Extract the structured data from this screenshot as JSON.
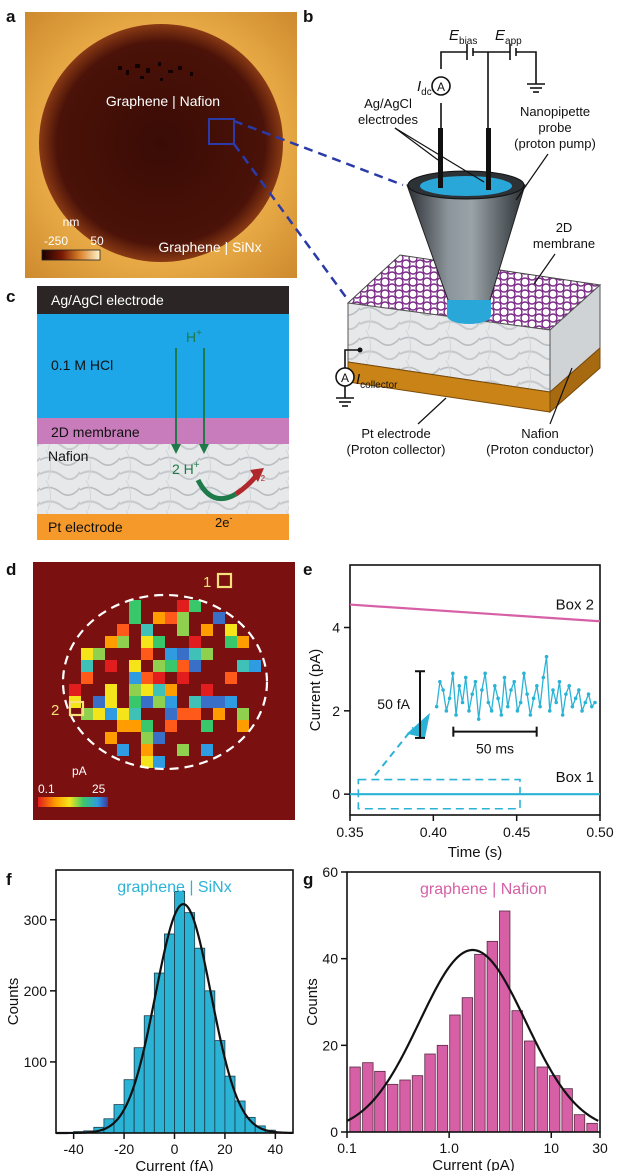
{
  "panels": {
    "a": {
      "label": "a",
      "inner_label": "Graphene | Nafion",
      "outer_label": "Graphene | SiNx",
      "colorbar_unit": "nm",
      "colorbar_min": "-250",
      "colorbar_max": "50"
    },
    "b": {
      "label": "b",
      "e_bias": "E",
      "e_bias_sub": "bias",
      "e_app": "E",
      "e_app_sub": "app",
      "i_dc": "I",
      "i_dc_sub": "dc",
      "ammeter_symbol": "A",
      "electrodes_label_1": "Ag/AgCl",
      "electrodes_label_2": "electrodes",
      "probe_label_1": "Nanopipette",
      "probe_label_2": "probe",
      "probe_label_3": "(proton pump)",
      "membrane_label_1": "2D",
      "membrane_label_2": "membrane",
      "collector_i": "I",
      "collector_sub": "collector",
      "pt_label_1": "Pt electrode",
      "pt_label_2": "(Proton collector)",
      "nafion_label_1": "Nafion",
      "nafion_label_2": "(Proton conductor)"
    },
    "c": {
      "label": "c",
      "layer_electrode": "Ag/AgCl electrode",
      "layer_hcl": "0.1 M HCl",
      "proton_top": "H",
      "proton_top_sup": "+",
      "layer_membrane": "2D membrane",
      "layer_nafion": "Nafion",
      "proton_mid": "2 H",
      "proton_mid_sup": "+",
      "h2": "H",
      "h2_sub": "2",
      "electrons": "2e",
      "electrons_sup": "-",
      "layer_pt": "Pt electrode"
    },
    "d": {
      "label": "d",
      "box1": "1",
      "box2": "2",
      "colorbar_unit": "pA",
      "colorbar_min": "0.1",
      "colorbar_max": "25"
    },
    "e": {
      "label": "e"
    },
    "f": {
      "label": "f"
    },
    "g": {
      "label": "g"
    }
  },
  "colors": {
    "cyan": "#2bb3d6",
    "pink": "#d65fa5",
    "dark_red": "#7a1010",
    "hcl_blue": "#1ea7e8",
    "membrane_purple": "#c87cbb",
    "pt_orange": "#f59a2a",
    "arrow_green": "#1f7a4a",
    "arrow_red": "#b0282b"
  },
  "chart_data": [
    {
      "panel": "e",
      "type": "line",
      "xlabel": "Time (s)",
      "ylabel": "Current (pA)",
      "xlim": [
        0.35,
        0.5
      ],
      "ylim": [
        -0.5,
        5.5
      ],
      "xticks": [
        "0.35",
        "0.40",
        "0.45",
        "0.50"
      ],
      "yticks": [
        "0",
        "2",
        "4"
      ],
      "series": [
        {
          "name": "Box 2",
          "x": [
            0.35,
            0.5
          ],
          "y": [
            4.55,
            4.15
          ]
        },
        {
          "name": "Box 1",
          "x": [
            0.35,
            0.5
          ],
          "y": [
            0.0,
            0.0
          ]
        }
      ],
      "inset": {
        "scale_current": "50 fA",
        "scale_time": "50 ms",
        "values": [
          2.1,
          2.7,
          2.5,
          2.0,
          2.3,
          2.9,
          1.9,
          2.6,
          2.2,
          2.8,
          2.0,
          2.4,
          2.7,
          1.8,
          2.5,
          2.9,
          2.2,
          2.0,
          2.6,
          2.3,
          1.9,
          2.8,
          2.1,
          2.5,
          2.7,
          2.0,
          2.2,
          2.9,
          2.4,
          1.9,
          2.3,
          2.6,
          2.1,
          2.8,
          3.3,
          2.0,
          2.5,
          2.2,
          2.7,
          1.9,
          2.4,
          2.6,
          2.1,
          2.3,
          2.5,
          2.0,
          2.2,
          2.4,
          2.1,
          2.2
        ]
      }
    },
    {
      "panel": "f",
      "type": "bar",
      "title": "graphene | SiNx",
      "xlabel": "Current (fA)",
      "ylabel": "Counts",
      "xlim": [
        -47,
        47
      ],
      "ylim": [
        0,
        370
      ],
      "xticks": [
        "-40",
        "-20",
        "0",
        "20",
        "40"
      ],
      "yticks": [
        "100",
        "200",
        "300"
      ],
      "bin_centers": [
        -38,
        -34,
        -30,
        -26,
        -22,
        -18,
        -14,
        -10,
        -6,
        -2,
        2,
        6,
        10,
        14,
        18,
        22,
        26,
        30,
        34,
        38
      ],
      "values": [
        2,
        3,
        8,
        20,
        40,
        75,
        120,
        165,
        225,
        280,
        340,
        310,
        260,
        200,
        130,
        80,
        45,
        22,
        10,
        4
      ],
      "fit": {
        "type": "gaussian",
        "amplitude": 322,
        "center": 3.5,
        "sigma": 11
      }
    },
    {
      "panel": "g",
      "type": "bar",
      "title": "graphene | Nafion",
      "xlabel": "Current (pA)",
      "ylabel": "Counts",
      "xscale": "log",
      "xlim": [
        0.1,
        30
      ],
      "ylim": [
        0,
        60
      ],
      "xticks": [
        "0.1",
        "1.0",
        "10",
        "30"
      ],
      "yticks": [
        "0",
        "20",
        "40",
        "60"
      ],
      "bin_centers": [
        0.12,
        0.16,
        0.21,
        0.28,
        0.37,
        0.49,
        0.65,
        0.86,
        1.14,
        1.51,
        2.0,
        2.65,
        3.5,
        4.64,
        6.15,
        8.15,
        10.8,
        14.3,
        18.9,
        25.1
      ],
      "values": [
        15,
        16,
        14,
        11,
        12,
        13,
        18,
        20,
        27,
        31,
        41,
        44,
        51,
        28,
        21,
        15,
        13,
        10,
        4,
        2
      ],
      "fit": {
        "type": "lognormal",
        "amplitude": 42,
        "center": 1.7,
        "sigma_log10": 0.52
      }
    }
  ]
}
